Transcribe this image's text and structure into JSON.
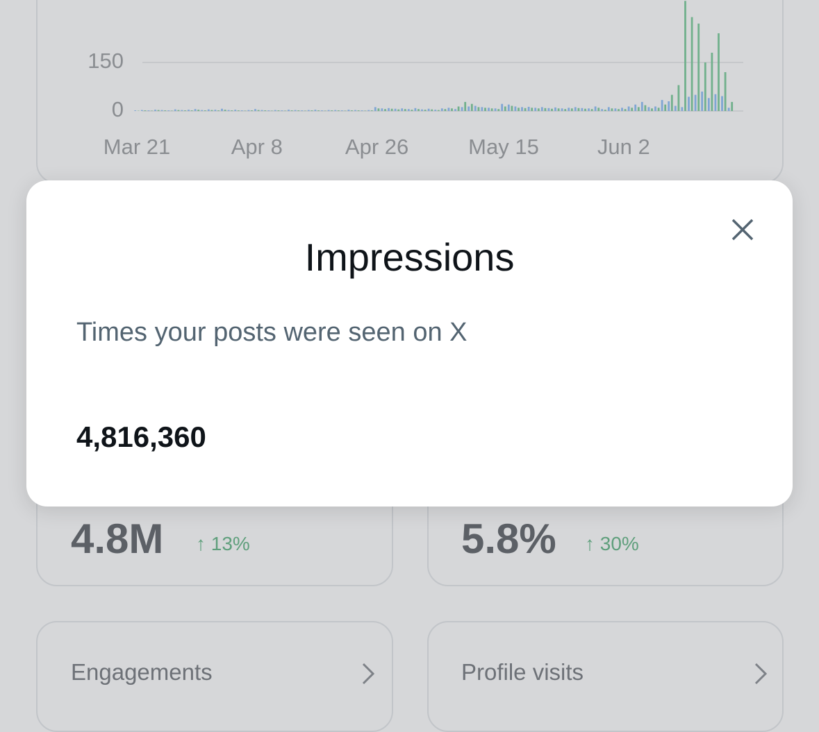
{
  "chart_data": {
    "type": "bar",
    "categories": [
      "Mar 21",
      null,
      null,
      null,
      null,
      null,
      null,
      null,
      null,
      null,
      null,
      null,
      null,
      null,
      null,
      null,
      null,
      null,
      "Apr 8",
      null,
      null,
      null,
      null,
      null,
      null,
      null,
      null,
      null,
      null,
      null,
      null,
      null,
      null,
      null,
      null,
      null,
      "Apr 26",
      null,
      null,
      null,
      null,
      null,
      null,
      null,
      null,
      null,
      null,
      null,
      null,
      null,
      null,
      null,
      null,
      null,
      null,
      "May 15",
      null,
      null,
      null,
      null,
      null,
      null,
      null,
      null,
      null,
      null,
      null,
      null,
      null,
      null,
      null,
      null,
      null,
      "Jun 2",
      null,
      null,
      null,
      null,
      null,
      null,
      null,
      null,
      null,
      null,
      null,
      null,
      null,
      null,
      null,
      null
    ],
    "series": [
      {
        "color": "#7fa6d4",
        "values": [
          2,
          3,
          2,
          4,
          3,
          2,
          5,
          3,
          4,
          6,
          3,
          5,
          4,
          7,
          3,
          4,
          2,
          3,
          6,
          3,
          2,
          3,
          2,
          4,
          3,
          2,
          3,
          4,
          2,
          3,
          3,
          2,
          4,
          3,
          2,
          3,
          12,
          8,
          9,
          7,
          8,
          6,
          9,
          5,
          7,
          4,
          8,
          10,
          6,
          12,
          14,
          16,
          12,
          10,
          8,
          22,
          20,
          14,
          12,
          13,
          10,
          12,
          9,
          11,
          8,
          10,
          12,
          9,
          8,
          14,
          6,
          12,
          8,
          10,
          14,
          20,
          28,
          12,
          14,
          34,
          30,
          16,
          12,
          44,
          50,
          60,
          40,
          52,
          46,
          10
        ]
      },
      {
        "color": "#71b08c",
        "values": [
          1,
          2,
          1,
          3,
          2,
          1,
          3,
          2,
          2,
          4,
          2,
          3,
          2,
          4,
          2,
          2,
          1,
          2,
          3,
          2,
          1,
          2,
          1,
          2,
          2,
          1,
          2,
          2,
          1,
          2,
          2,
          1,
          2,
          2,
          1,
          2,
          8,
          6,
          7,
          5,
          6,
          4,
          6,
          4,
          5,
          3,
          6,
          8,
          14,
          28,
          22,
          12,
          10,
          8,
          6,
          14,
          16,
          10,
          9,
          10,
          8,
          9,
          7,
          8,
          6,
          8,
          9,
          7,
          6,
          10,
          4,
          8,
          6,
          6,
          10,
          12,
          18,
          8,
          10,
          20,
          50,
          80,
          340,
          290,
          270,
          150,
          180,
          240,
          120,
          28
        ]
      }
    ],
    "ylim": [
      0,
      340
    ],
    "yticks": [
      0,
      150
    ],
    "grid": true
  },
  "cards": [
    {
      "value": "4.8M",
      "change": "↑ 13%"
    },
    {
      "value": "5.8%",
      "change": "↑ 30%"
    },
    {
      "label": "Engagements"
    },
    {
      "label": "Profile visits"
    }
  ],
  "modal": {
    "title": "Impressions",
    "description": "Times your posts were seen on X",
    "value": "4,816,360"
  }
}
